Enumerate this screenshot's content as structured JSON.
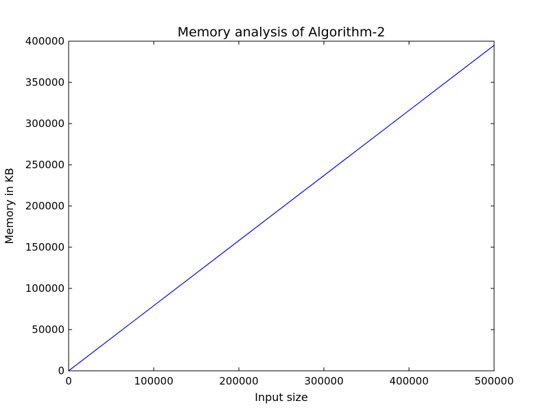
{
  "chart_data": {
    "type": "line",
    "title": "Memory analysis of Algorithm-2",
    "xlabel": "Input size",
    "ylabel": "Memory in KB",
    "xlim": [
      0,
      500000
    ],
    "ylim": [
      0,
      400000
    ],
    "x_ticks": [
      0,
      100000,
      200000,
      300000,
      400000,
      500000
    ],
    "y_ticks": [
      0,
      50000,
      100000,
      150000,
      200000,
      250000,
      300000,
      350000,
      400000
    ],
    "x_tick_labels": [
      "0",
      "100000",
      "200000",
      "300000",
      "400000",
      "500000"
    ],
    "y_tick_labels": [
      "0",
      "50000",
      "100000",
      "150000",
      "200000",
      "250000",
      "300000",
      "350000",
      "400000"
    ],
    "grid": false,
    "legend": "none",
    "series": [
      {
        "color": "#0000ff",
        "x": [
          0,
          100000,
          200000,
          300000,
          400000,
          500000
        ],
        "y": [
          0,
          79000,
          158000,
          237000,
          316000,
          395000
        ]
      }
    ]
  }
}
